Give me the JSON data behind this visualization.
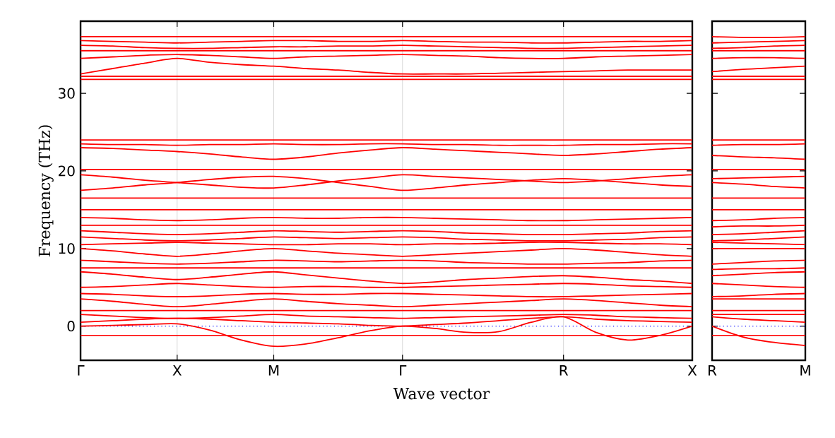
{
  "chart_data": [
    {
      "type": "line",
      "ylabel": "Frequency (THz)",
      "xlabel": "Wave vector",
      "categories": [
        "Γ",
        null,
        null,
        "X",
        null,
        null,
        "M",
        null,
        null,
        null,
        "Γ",
        null,
        null,
        null,
        null,
        "R",
        null,
        null,
        null,
        "X"
      ],
      "ylim": [
        -4.4,
        39.3
      ],
      "yticks": [
        0,
        10,
        20,
        30
      ],
      "grid": "x",
      "line_style": "solid",
      "ref_lines": [
        {
          "axis": "y",
          "value": 0,
          "color": "#0000ff",
          "line_style": "dotted"
        }
      ],
      "series": [
        {
          "color": "#ff0000",
          "values": [
            37.3,
            37.3,
            37.3,
            37.3,
            37.3,
            37.3,
            37.3,
            37.3,
            37.3,
            37.3,
            37.3,
            37.3,
            37.3,
            37.3,
            37.3,
            37.3,
            37.3,
            37.3,
            37.3,
            37.3
          ]
        },
        {
          "color": "#ff0000",
          "values": [
            36.8,
            36.7,
            36.6,
            36.5,
            36.6,
            36.7,
            36.8,
            36.8,
            36.7,
            36.7,
            36.8,
            36.7,
            36.6,
            36.6,
            36.5,
            36.5,
            36.6,
            36.7,
            36.7,
            36.8
          ]
        },
        {
          "color": "#ff0000",
          "values": [
            36.2,
            36.1,
            35.9,
            35.8,
            35.8,
            35.9,
            36,
            36,
            36.1,
            36.1,
            36.2,
            36.1,
            36,
            35.9,
            35.8,
            35.8,
            35.9,
            36,
            36.1,
            36.2
          ]
        },
        {
          "color": "#ff0000",
          "values": [
            35.5,
            35.5,
            35.5,
            35.5,
            35.5,
            35.5,
            35.5,
            35.5,
            35.5,
            35.5,
            35.5,
            35.5,
            35.5,
            35.5,
            35.5,
            35.5,
            35.5,
            35.5,
            35.5,
            35.5
          ]
        },
        {
          "color": "#ff0000",
          "values": [
            34.5,
            34.7,
            34.9,
            35,
            34.9,
            34.7,
            34.5,
            34.7,
            34.8,
            34.9,
            35,
            34.9,
            34.8,
            34.6,
            34.5,
            34.5,
            34.7,
            34.8,
            34.9,
            35
          ]
        },
        {
          "color": "#ff0000",
          "values": [
            32.5,
            33.2,
            33.9,
            34.5,
            34,
            33.7,
            33.5,
            33.2,
            33,
            32.7,
            32.5,
            32.5,
            32.5,
            32.6,
            32.7,
            32.8,
            32.9,
            33,
            33,
            33
          ]
        },
        {
          "color": "#ff0000",
          "values": [
            32.2,
            32.2,
            32.2,
            32.2,
            32.2,
            32.2,
            32.2,
            32.2,
            32.2,
            32.2,
            32.2,
            32.2,
            32.2,
            32.2,
            32.2,
            32.2,
            32.2,
            32.2,
            32.2,
            32.2
          ]
        },
        {
          "color": "#ff0000",
          "values": [
            31.8,
            31.8,
            31.8,
            31.8,
            31.8,
            31.8,
            31.8,
            31.8,
            31.8,
            31.8,
            31.8,
            31.8,
            31.8,
            31.8,
            31.8,
            31.8,
            31.8,
            31.8,
            31.8,
            31.8
          ]
        },
        {
          "color": "#ff0000",
          "values": [
            24,
            24,
            24,
            24,
            24,
            24,
            24,
            24,
            24,
            24,
            24,
            24,
            24,
            24,
            24,
            24,
            24,
            24,
            24,
            24
          ]
        },
        {
          "color": "#ff0000",
          "values": [
            23.5,
            23.4,
            23.4,
            23.3,
            23.4,
            23.4,
            23.5,
            23.4,
            23.4,
            23.5,
            23.5,
            23.4,
            23.4,
            23.3,
            23.3,
            23.3,
            23.4,
            23.4,
            23.5,
            23.5
          ]
        },
        {
          "color": "#ff0000",
          "values": [
            23,
            22.9,
            22.7,
            22.5,
            22.2,
            21.8,
            21.5,
            21.8,
            22.3,
            22.7,
            23,
            22.8,
            22.6,
            22.4,
            22.2,
            22,
            22.2,
            22.5,
            22.8,
            23
          ]
        },
        {
          "color": "#ff0000",
          "values": [
            20.2,
            20.2,
            20.2,
            20.2,
            20.2,
            20.2,
            20.2,
            20.2,
            20.2,
            20.2,
            20.2,
            20.2,
            20.2,
            20.2,
            20.2,
            20.2,
            20.2,
            20.2,
            20.2,
            20.2
          ]
        },
        {
          "color": "#ff0000",
          "values": [
            19.5,
            19.2,
            18.8,
            18.5,
            18.2,
            17.9,
            17.8,
            18.2,
            18.7,
            19.1,
            19.5,
            19.3,
            19.1,
            18.9,
            18.7,
            18.5,
            18.7,
            19,
            19.3,
            19.5
          ]
        },
        {
          "color": "#ff0000",
          "values": [
            17.5,
            17.8,
            18.2,
            18.5,
            18.9,
            19.2,
            19.3,
            19,
            18.5,
            18,
            17.5,
            17.8,
            18.2,
            18.5,
            18.8,
            19,
            18.8,
            18.5,
            18.2,
            18
          ]
        },
        {
          "color": "#ff0000",
          "values": [
            16.5,
            16.5,
            16.5,
            16.5,
            16.5,
            16.5,
            16.5,
            16.5,
            16.5,
            16.5,
            16.5,
            16.5,
            16.5,
            16.5,
            16.5,
            16.5,
            16.5,
            16.5,
            16.5,
            16.5
          ]
        },
        {
          "color": "#ff0000",
          "values": [
            15,
            15,
            15,
            15,
            15,
            15,
            15,
            15,
            15,
            15,
            15,
            15,
            15,
            15,
            15,
            15,
            15,
            15,
            15,
            15
          ]
        },
        {
          "color": "#ff0000",
          "values": [
            14,
            13.9,
            13.7,
            13.6,
            13.7,
            13.9,
            14,
            13.9,
            13.9,
            14,
            14,
            13.9,
            13.8,
            13.7,
            13.6,
            13.6,
            13.7,
            13.8,
            13.9,
            14
          ]
        },
        {
          "color": "#ff0000",
          "values": [
            13,
            13,
            13,
            13,
            13,
            13,
            13,
            13,
            13,
            13,
            13,
            13,
            13,
            13,
            13,
            13,
            13,
            13,
            13,
            13
          ]
        },
        {
          "color": "#ff0000",
          "values": [
            12.3,
            12.1,
            11.9,
            11.8,
            11.9,
            12.1,
            12.3,
            12.2,
            12.1,
            12.2,
            12.3,
            12.2,
            12,
            11.9,
            11.8,
            11.8,
            11.9,
            12,
            12.2,
            12.3
          ]
        },
        {
          "color": "#ff0000",
          "values": [
            11.5,
            11.3,
            11.1,
            11,
            11.1,
            11.3,
            11.5,
            11.4,
            11.3,
            11.4,
            11.5,
            11.4,
            11.2,
            11.1,
            11,
            11,
            11.1,
            11.2,
            11.4,
            11.5
          ]
        },
        {
          "color": "#ff0000",
          "values": [
            10.5,
            10.6,
            10.7,
            10.8,
            10.7,
            10.6,
            10.5,
            10.5,
            10.6,
            10.6,
            10.5,
            10.6,
            10.6,
            10.7,
            10.8,
            10.8,
            10.7,
            10.6,
            10.6,
            10.5
          ]
        },
        {
          "color": "#ff0000",
          "values": [
            10,
            9.7,
            9.3,
            9,
            9.3,
            9.7,
            10,
            9.7,
            9.4,
            9.2,
            9,
            9.2,
            9.4,
            9.6,
            9.8,
            10,
            9.8,
            9.5,
            9.2,
            9
          ]
        },
        {
          "color": "#ff0000",
          "values": [
            8.5,
            8.3,
            8.1,
            8,
            8.1,
            8.3,
            8.5,
            8.4,
            8.3,
            8.4,
            8.5,
            8.4,
            8.2,
            8.1,
            8,
            8,
            8.1,
            8.2,
            8.4,
            8.5
          ]
        },
        {
          "color": "#ff0000",
          "values": [
            7.5,
            7.5,
            7.5,
            7.5,
            7.5,
            7.5,
            7.5,
            7.5,
            7.5,
            7.5,
            7.5,
            7.5,
            7.5,
            7.5,
            7.5,
            7.5,
            7.5,
            7.5,
            7.5,
            7.5
          ]
        },
        {
          "color": "#ff0000",
          "values": [
            7,
            6.7,
            6.3,
            6,
            6.3,
            6.7,
            7,
            6.6,
            6.2,
            5.8,
            5.5,
            5.7,
            6,
            6.2,
            6.4,
            6.5,
            6.3,
            6,
            5.8,
            5.5
          ]
        },
        {
          "color": "#ff0000",
          "values": [
            5,
            5.1,
            5.3,
            5.5,
            5.3,
            5.1,
            5,
            5.1,
            5.1,
            5,
            5,
            5.1,
            5.2,
            5.3,
            5.4,
            5.5,
            5.4,
            5.2,
            5.1,
            5
          ]
        },
        {
          "color": "#ff0000",
          "values": [
            4.2,
            4.1,
            3.9,
            3.8,
            3.9,
            4.1,
            4.2,
            4.1,
            4.1,
            4.2,
            4.2,
            4.1,
            4,
            3.9,
            3.8,
            3.8,
            3.9,
            4,
            4.1,
            4.2
          ]
        },
        {
          "color": "#ff0000",
          "values": [
            3.5,
            3.2,
            2.8,
            2.5,
            2.8,
            3.2,
            3.5,
            3.2,
            2.9,
            2.7,
            2.5,
            2.7,
            2.9,
            3.1,
            3.3,
            3.5,
            3.3,
            3,
            2.7,
            2.5
          ]
        },
        {
          "color": "#ff0000",
          "values": [
            2,
            2,
            2,
            2,
            2,
            2,
            2,
            2,
            2,
            2,
            2,
            2,
            2,
            2,
            2,
            2,
            2,
            2,
            2,
            2
          ]
        },
        {
          "color": "#ff0000",
          "values": [
            1.5,
            1.3,
            1.1,
            1,
            1.1,
            1.3,
            1.5,
            1.3,
            1.2,
            1.1,
            1,
            1.1,
            1.2,
            1.3,
            1.4,
            1.5,
            1.4,
            1.2,
            1.1,
            1
          ]
        },
        {
          "color": "#ff0000",
          "values": [
            0.5,
            0.7,
            0.9,
            1,
            0.9,
            0.7,
            0.5,
            0.4,
            0.3,
            0.1,
            0,
            0.2,
            0.4,
            0.7,
            1,
            1.2,
            0.9,
            0.7,
            0.6,
            0.5
          ]
        },
        {
          "color": "#ff0000",
          "values": [
            -1.2,
            -1.2,
            -1.2,
            -1.2,
            -1.2,
            -1.2,
            -1.2,
            -1.2,
            -1.2,
            -1.2,
            -1.2,
            -1.2,
            -1.2,
            -1.2,
            -1.2,
            -1.2,
            -1.2,
            -1.2,
            -1.2,
            -1.2
          ]
        },
        {
          "color": "#ff0000",
          "values": [
            0,
            0.1,
            0.2,
            0.3,
            -0.5,
            -1.8,
            -2.6,
            -2.3,
            -1.5,
            -0.6,
            0,
            -0.3,
            -0.8,
            -0.7,
            0.5,
            1.2,
            -0.8,
            -1.8,
            -1.2,
            0
          ]
        }
      ]
    },
    {
      "type": "line",
      "categories": [
        "R",
        null,
        null,
        "M"
      ],
      "ylim": [
        -4.4,
        39.3
      ],
      "yticks": [
        0,
        10,
        20,
        30
      ],
      "tick_labels": "x",
      "line_style": "solid",
      "ref_lines": [
        {
          "axis": "y",
          "value": 0,
          "color": "#0000ff",
          "line_style": "dotted"
        }
      ],
      "series": [
        {
          "color": "#ff0000",
          "values": [
            37.3,
            37.2,
            37.2,
            37.3
          ]
        },
        {
          "color": "#ff0000",
          "values": [
            36.5,
            36.6,
            36.7,
            36.8
          ]
        },
        {
          "color": "#ff0000",
          "values": [
            35.8,
            35.9,
            36.1,
            36.2
          ]
        },
        {
          "color": "#ff0000",
          "values": [
            35.5,
            35.5,
            35.5,
            35.5
          ]
        },
        {
          "color": "#ff0000",
          "values": [
            34.5,
            34.6,
            34.6,
            34.5
          ]
        },
        {
          "color": "#ff0000",
          "values": [
            32.8,
            33.1,
            33.3,
            33.5
          ]
        },
        {
          "color": "#ff0000",
          "values": [
            32.2,
            32.2,
            32.2,
            32.2
          ]
        },
        {
          "color": "#ff0000",
          "values": [
            31.8,
            31.8,
            31.8,
            31.8
          ]
        },
        {
          "color": "#ff0000",
          "values": [
            24,
            24,
            24,
            24
          ]
        },
        {
          "color": "#ff0000",
          "values": [
            23.3,
            23.4,
            23.4,
            23.5
          ]
        },
        {
          "color": "#ff0000",
          "values": [
            22,
            21.8,
            21.7,
            21.5
          ]
        },
        {
          "color": "#ff0000",
          "values": [
            20.2,
            20.2,
            20.2,
            20.2
          ]
        },
        {
          "color": "#ff0000",
          "values": [
            18.5,
            18.3,
            18,
            17.8
          ]
        },
        {
          "color": "#ff0000",
          "values": [
            19,
            19.1,
            19.2,
            19.3
          ]
        },
        {
          "color": "#ff0000",
          "values": [
            16.5,
            16.5,
            16.5,
            16.5
          ]
        },
        {
          "color": "#ff0000",
          "values": [
            15,
            15,
            15,
            15
          ]
        },
        {
          "color": "#ff0000",
          "values": [
            13.6,
            13.7,
            13.9,
            14
          ]
        },
        {
          "color": "#ff0000",
          "values": [
            12.8,
            12.9,
            12.9,
            13
          ]
        },
        {
          "color": "#ff0000",
          "values": [
            11.8,
            11.9,
            12.1,
            12.3
          ]
        },
        {
          "color": "#ff0000",
          "values": [
            11,
            11.1,
            11.3,
            11.5
          ]
        },
        {
          "color": "#ff0000",
          "values": [
            10.8,
            10.7,
            10.6,
            10.5
          ]
        },
        {
          "color": "#ff0000",
          "values": [
            10,
            10,
            10,
            10
          ]
        },
        {
          "color": "#ff0000",
          "values": [
            8,
            8.2,
            8.4,
            8.5
          ]
        },
        {
          "color": "#ff0000",
          "values": [
            7.3,
            7.4,
            7.4,
            7.5
          ]
        },
        {
          "color": "#ff0000",
          "values": [
            6.5,
            6.7,
            6.9,
            7
          ]
        },
        {
          "color": "#ff0000",
          "values": [
            5.5,
            5.3,
            5.1,
            5
          ]
        },
        {
          "color": "#ff0000",
          "values": [
            3.8,
            3.9,
            4.1,
            4.2
          ]
        },
        {
          "color": "#ff0000",
          "values": [
            3.5,
            3.5,
            3.5,
            3.5
          ]
        },
        {
          "color": "#ff0000",
          "values": [
            2,
            2,
            2,
            2
          ]
        },
        {
          "color": "#ff0000",
          "values": [
            1.5,
            1.5,
            1.5,
            1.5
          ]
        },
        {
          "color": "#ff0000",
          "values": [
            1.2,
            0.9,
            0.7,
            0.5
          ]
        },
        {
          "color": "#ff0000",
          "values": [
            -1.2,
            -1.2,
            -1.2,
            -1.2
          ]
        },
        {
          "color": "#ff0000",
          "values": [
            0,
            -1.4,
            -2.1,
            -2.5
          ]
        }
      ]
    }
  ]
}
